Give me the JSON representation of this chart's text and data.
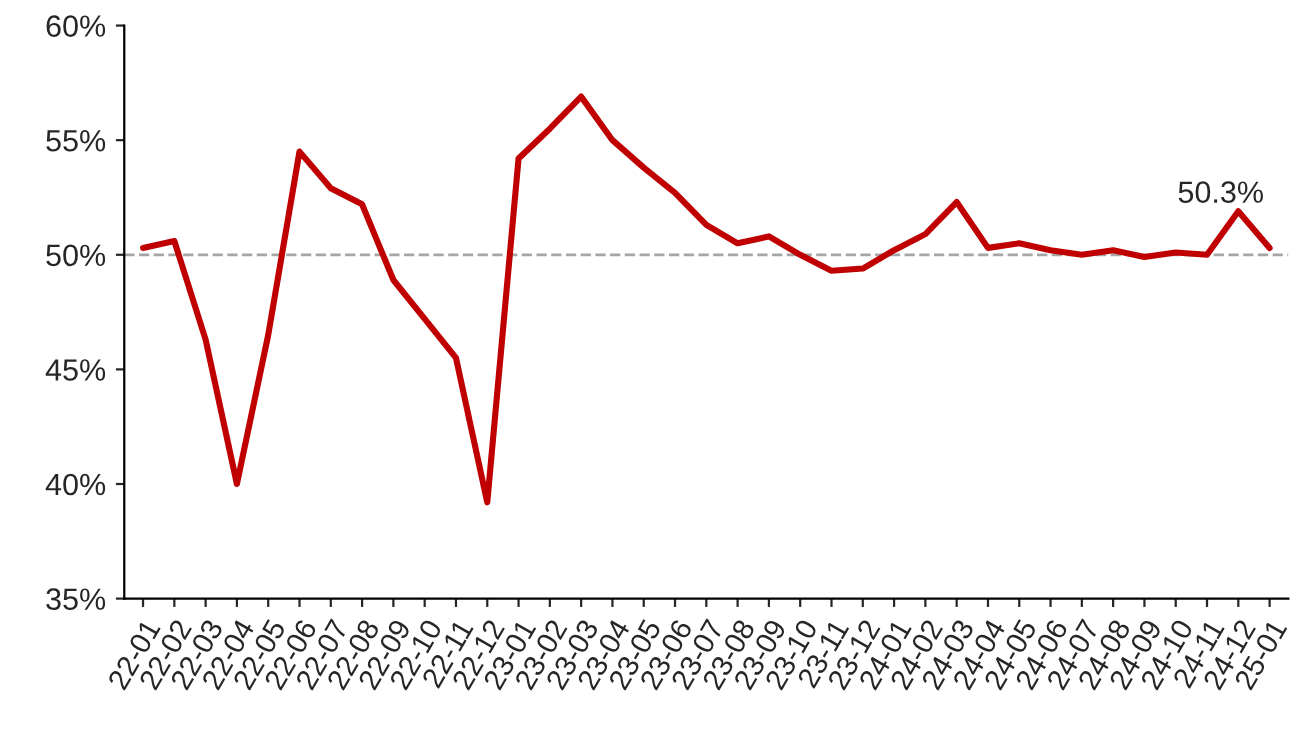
{
  "chart_data": {
    "type": "line",
    "categories": [
      "22-01",
      "22-02",
      "22-03",
      "22-04",
      "22-05",
      "22-06",
      "22-07",
      "22-08",
      "22-09",
      "22-10",
      "22-11",
      "22-12",
      "23-01",
      "23-02",
      "23-03",
      "23-04",
      "23-05",
      "23-06",
      "23-07",
      "23-08",
      "23-09",
      "23-10",
      "23-11",
      "23-12",
      "24-01",
      "24-02",
      "24-03",
      "24-04",
      "24-05",
      "24-06",
      "24-07",
      "24-08",
      "24-09",
      "24-10",
      "24-11",
      "24-12",
      "25-01"
    ],
    "series": [
      {
        "color": "#c00000",
        "values": [
          50.3,
          50.6,
          46.3,
          40.0,
          46.5,
          54.5,
          52.9,
          52.2,
          48.9,
          47.2,
          45.5,
          39.2,
          54.2,
          55.5,
          56.9,
          55.0,
          53.8,
          52.7,
          51.3,
          50.5,
          50.8,
          50.0,
          49.3,
          49.4,
          50.2,
          50.9,
          52.3,
          50.3,
          50.5,
          50.2,
          50.0,
          50.2,
          49.9,
          50.1,
          50.0,
          51.9,
          50.3
        ]
      }
    ],
    "ylim": [
      35,
      60
    ],
    "yticks": [
      {
        "value": 35,
        "label": "35%"
      },
      {
        "value": 40,
        "label": "40%"
      },
      {
        "value": 45,
        "label": "45%"
      },
      {
        "value": 50,
        "label": "50%"
      },
      {
        "value": 55,
        "label": "55%"
      },
      {
        "value": 60,
        "label": "60%"
      }
    ],
    "ref_lines": [
      {
        "axis": "y",
        "value": 50,
        "color": "#a6a6a6",
        "line_style": "dashed"
      }
    ],
    "annotations": [
      {
        "text": "50.3%",
        "x": "25-01",
        "y": 50.3
      }
    ],
    "grid": false,
    "legend": false,
    "marker": "none",
    "line_style": "solid"
  }
}
